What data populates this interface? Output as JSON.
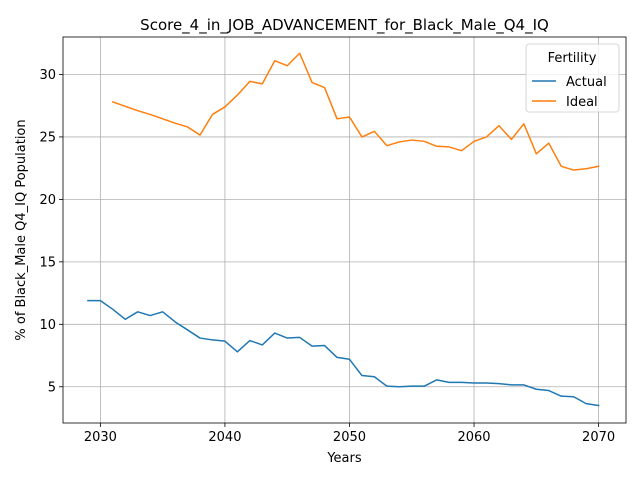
{
  "chart_data": {
    "type": "line",
    "title": "Score_4_in_JOB_ADVANCEMENT_for_Black_Male_Q4_IQ",
    "xlabel": "Years",
    "ylabel": "% of Black_Male Q4_IQ Population",
    "xlim": [
      2027,
      2072.2
    ],
    "ylim": [
      2.1,
      33.0
    ],
    "xticks": [
      2030,
      2040,
      2050,
      2060,
      2070
    ],
    "yticks": [
      5,
      10,
      15,
      20,
      25,
      30
    ],
    "grid": true,
    "legend": {
      "title": "Fertility",
      "position": "top-right"
    },
    "series": [
      {
        "name": "Actual",
        "color": "#1f77b4",
        "x": [
          2029,
          2030,
          2031,
          2032,
          2033,
          2034,
          2035,
          2036,
          2037,
          2038,
          2039,
          2040,
          2041,
          2042,
          2043,
          2044,
          2045,
          2046,
          2047,
          2048,
          2049,
          2050,
          2051,
          2052,
          2053,
          2054,
          2055,
          2056,
          2057,
          2058,
          2059,
          2060,
          2061,
          2062,
          2063,
          2064,
          2065,
          2066,
          2067,
          2068,
          2069,
          2070
        ],
        "y": [
          11.9,
          11.9,
          11.2,
          10.4,
          11.0,
          10.7,
          11.0,
          10.2,
          9.55,
          8.9,
          8.75,
          8.65,
          7.8,
          8.7,
          8.35,
          9.3,
          8.9,
          8.95,
          8.25,
          8.3,
          7.35,
          7.2,
          5.9,
          5.8,
          5.05,
          5.0,
          5.05,
          5.05,
          5.55,
          5.35,
          5.35,
          5.3,
          5.3,
          5.25,
          5.15,
          5.15,
          4.8,
          4.7,
          4.25,
          4.2,
          3.65,
          3.5
        ]
      },
      {
        "name": "Ideal",
        "color": "#ff7f0e",
        "x": [
          2031,
          2032,
          2033,
          2034,
          2035,
          2036,
          2037,
          2038,
          2039,
          2040,
          2041,
          2042,
          2043,
          2044,
          2045,
          2046,
          2047,
          2048,
          2049,
          2050,
          2051,
          2052,
          2053,
          2054,
          2055,
          2056,
          2057,
          2058,
          2059,
          2060,
          2061,
          2062,
          2063,
          2064,
          2065,
          2066,
          2067,
          2068,
          2069,
          2070
        ],
        "y": [
          27.8,
          27.45,
          27.1,
          26.8,
          26.45,
          26.1,
          25.8,
          25.15,
          26.8,
          27.4,
          28.35,
          29.45,
          29.25,
          31.1,
          30.7,
          31.7,
          29.35,
          28.95,
          26.45,
          26.6,
          25.0,
          25.45,
          24.3,
          24.6,
          24.75,
          24.65,
          24.25,
          24.2,
          23.9,
          24.65,
          25.0,
          25.9,
          24.8,
          26.05,
          23.65,
          24.5,
          22.65,
          22.35,
          22.45,
          22.65
        ]
      }
    ]
  }
}
